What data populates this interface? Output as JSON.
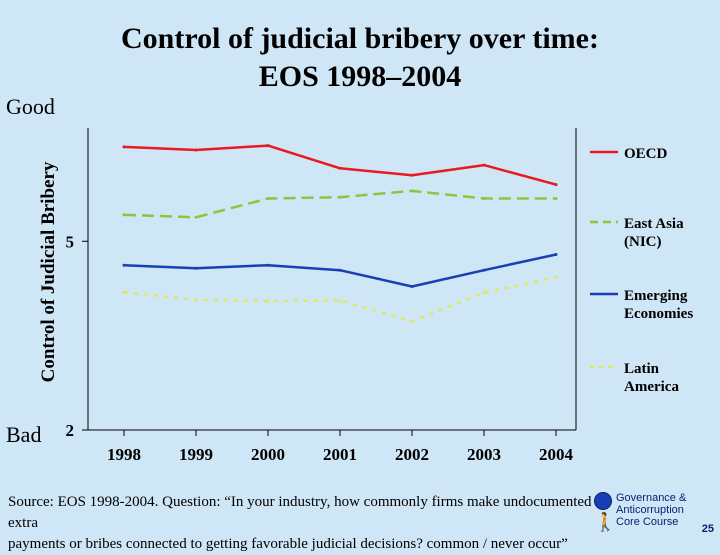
{
  "slide": {
    "title_line1": "Control of judicial bribery over time:",
    "title_line2": "EOS 1998–2004",
    "good_label": "Good",
    "bad_label": "Bad",
    "source_line1": "Source:  EOS 1998-2004. Question: “In your industry, how commonly firms make undocumented extra",
    "source_line2": "payments or bribes connected to getting favorable judicial decisions? common / never occur”",
    "logo_line1": "Governance &",
    "logo_line2": "Anticorruption",
    "logo_line3": "Core Course",
    "page_number": "25"
  },
  "chart_data": {
    "type": "line",
    "title": "Control of judicial bribery over time: EOS 1998–2004",
    "xlabel": "",
    "ylabel": "Control of Judicial Bribery",
    "categories": [
      "1998",
      "1999",
      "2000",
      "2001",
      "2002",
      "2003",
      "2004"
    ],
    "ylim": [
      2,
      6.8
    ],
    "yticks": [
      2,
      5
    ],
    "ytick_labels": [
      "2",
      "5"
    ],
    "grid": false,
    "legend_position": "right",
    "series": [
      {
        "name": "OECD",
        "legend": [
          "OECD"
        ],
        "color": "#e8191f",
        "dash": "solid",
        "values": [
          6.5,
          6.45,
          6.52,
          6.16,
          6.05,
          6.21,
          5.9
        ]
      },
      {
        "name": "East Asia (NIC)",
        "legend": [
          "East Asia",
          "(NIC)"
        ],
        "color": "#8cc63f",
        "dash": "dashed",
        "values": [
          5.42,
          5.38,
          5.68,
          5.7,
          5.8,
          5.68,
          5.68
        ]
      },
      {
        "name": "Emerging Economies",
        "legend": [
          "Emerging",
          "Economies"
        ],
        "color": "#1a3fb5",
        "dash": "solid",
        "values": [
          4.62,
          4.57,
          4.62,
          4.54,
          4.28,
          4.54,
          4.79
        ]
      },
      {
        "name": "Latin America",
        "legend": [
          "Latin",
          "America"
        ],
        "color": "#e0e85a",
        "dash": "dotted",
        "values": [
          4.19,
          4.07,
          4.05,
          4.06,
          3.73,
          4.18,
          4.43
        ]
      }
    ]
  }
}
